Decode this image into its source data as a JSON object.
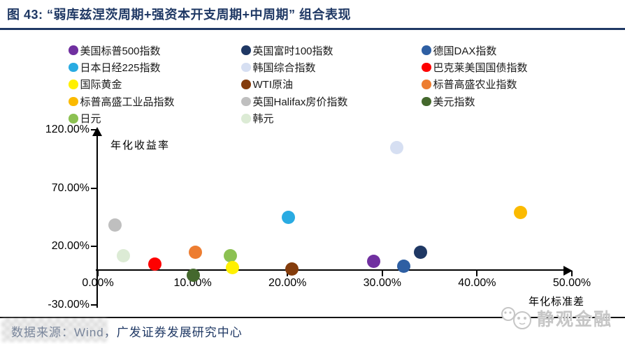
{
  "title": "图 43: “弱库兹涅茨周期+强资本开支周期+中周期” 组合表现",
  "legend": {
    "columns": [
      {
        "items": [
          {
            "label": "美国标普500指数",
            "color": "#7030A0"
          },
          {
            "label": "日本日经225指数",
            "color": "#29ABE2"
          },
          {
            "label": "国际黄金",
            "color": "#FFF000"
          },
          {
            "label": "标普高盛工业品指数",
            "color": "#FBBA00"
          },
          {
            "label": "日元",
            "color": "#8CC152"
          }
        ]
      },
      {
        "items": [
          {
            "label": "英国富时100指数",
            "color": "#1F3864"
          },
          {
            "label": "韩国综合指数",
            "color": "#D6DFF2"
          },
          {
            "label": "WTI原油",
            "color": "#843C0C"
          },
          {
            "label": "英国Halifax房价指数",
            "color": "#BFBFBF"
          },
          {
            "label": "韩元",
            "color": "#DCEBD5"
          }
        ]
      },
      {
        "items": [
          {
            "label": "德国DAX指数",
            "color": "#2E5FA3"
          },
          {
            "label": "巴克莱美国国债指数",
            "color": "#FE0000"
          },
          {
            "label": "标普高盛农业指数",
            "color": "#ED7D31"
          },
          {
            "label": "美元指数",
            "color": "#44682D"
          }
        ]
      }
    ]
  },
  "chart_data": {
    "type": "scatter",
    "xlabel": "年化标准差",
    "ylabel": "年化收益率",
    "xlim": [
      0,
      50
    ],
    "ylim": [
      -30,
      120
    ],
    "x_ticks": [
      "0.00%",
      "10.00%",
      "20.00%",
      "30.00%",
      "40.00%",
      "50.00%"
    ],
    "x_tick_values": [
      0,
      10,
      20,
      30,
      40,
      50
    ],
    "y_ticks": [
      "120.00%",
      "70.00%",
      "20.00%",
      "-30.00%"
    ],
    "y_tick_values": [
      120,
      70,
      20,
      -30
    ],
    "series": [
      {
        "name": "英国Halifax房价指数",
        "x": 1.8,
        "y": 38,
        "color": "#BFBFBF"
      },
      {
        "name": "韩元",
        "x": 2.7,
        "y": 12,
        "color": "#DCEBD5"
      },
      {
        "name": "巴克莱美国国债指数",
        "x": 6.0,
        "y": 5,
        "color": "#FE0000"
      },
      {
        "name": "美元指数",
        "x": 10.1,
        "y": -5,
        "color": "#44682D"
      },
      {
        "name": "标普高盛农业指数",
        "x": 10.3,
        "y": 15,
        "color": "#ED7D31"
      },
      {
        "name": "日元",
        "x": 14.0,
        "y": 12,
        "color": "#8CC152"
      },
      {
        "name": "国际黄金",
        "x": 14.2,
        "y": 2,
        "color": "#FFF000"
      },
      {
        "name": "日本日经225指数",
        "x": 20.1,
        "y": 45,
        "color": "#29ABE2"
      },
      {
        "name": "WTI原油",
        "x": 20.5,
        "y": 0.5,
        "color": "#843C0C"
      },
      {
        "name": "美国标普500指数",
        "x": 29.1,
        "y": 7,
        "color": "#7030A0"
      },
      {
        "name": "韩国综合指数",
        "x": 31.5,
        "y": 105,
        "color": "#D6DFF2"
      },
      {
        "name": "德国DAX指数",
        "x": 32.3,
        "y": 3,
        "color": "#2E5FA3"
      },
      {
        "name": "英国富时100指数",
        "x": 34.0,
        "y": 15,
        "color": "#1F3864"
      },
      {
        "name": "标普高盛工业品指数",
        "x": 44.6,
        "y": 49,
        "color": "#FBBA00"
      }
    ]
  },
  "footer": {
    "source_text": "数据来源：Wind，广发证券发展研究中心"
  },
  "watermark": {
    "text": "静观金融"
  }
}
